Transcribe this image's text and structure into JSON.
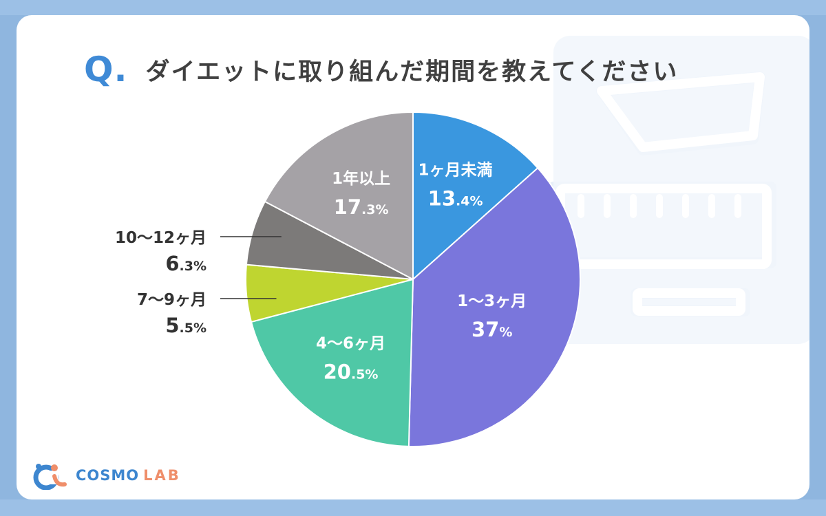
{
  "header": {
    "q_mark": "Q.",
    "question": "ダイエットに取り組んだ期間を教えてください"
  },
  "brand": {
    "name_main": "COSMO",
    "name_sub": "LAB"
  },
  "chart_data": {
    "type": "pie",
    "title": "ダイエットに取り組んだ期間を教えてください",
    "start_angle_deg": 0,
    "direction": "clockwise",
    "slices": [
      {
        "label": "1ヶ月未満",
        "value": 13.4,
        "num": "13",
        "unit": ".4%",
        "color": "#3a97df"
      },
      {
        "label": "1〜3ヶ月",
        "value": 37,
        "num": "37",
        "unit": "%",
        "color": "#7a76dc"
      },
      {
        "label": "4〜6ヶ月",
        "value": 20.5,
        "num": "20",
        "unit": ".5%",
        "color": "#4fc8a6"
      },
      {
        "label": "7〜9ヶ月",
        "value": 5.5,
        "num": "5",
        "unit": ".5%",
        "color": "#bfd530"
      },
      {
        "label": "10〜12ヶ月",
        "value": 6.3,
        "num": "6",
        "unit": ".3%",
        "color": "#7c7a79"
      },
      {
        "label": "1年以上",
        "value": 17.3,
        "num": "17",
        "unit": ".3%",
        "color": "#a5a2a6"
      }
    ]
  }
}
